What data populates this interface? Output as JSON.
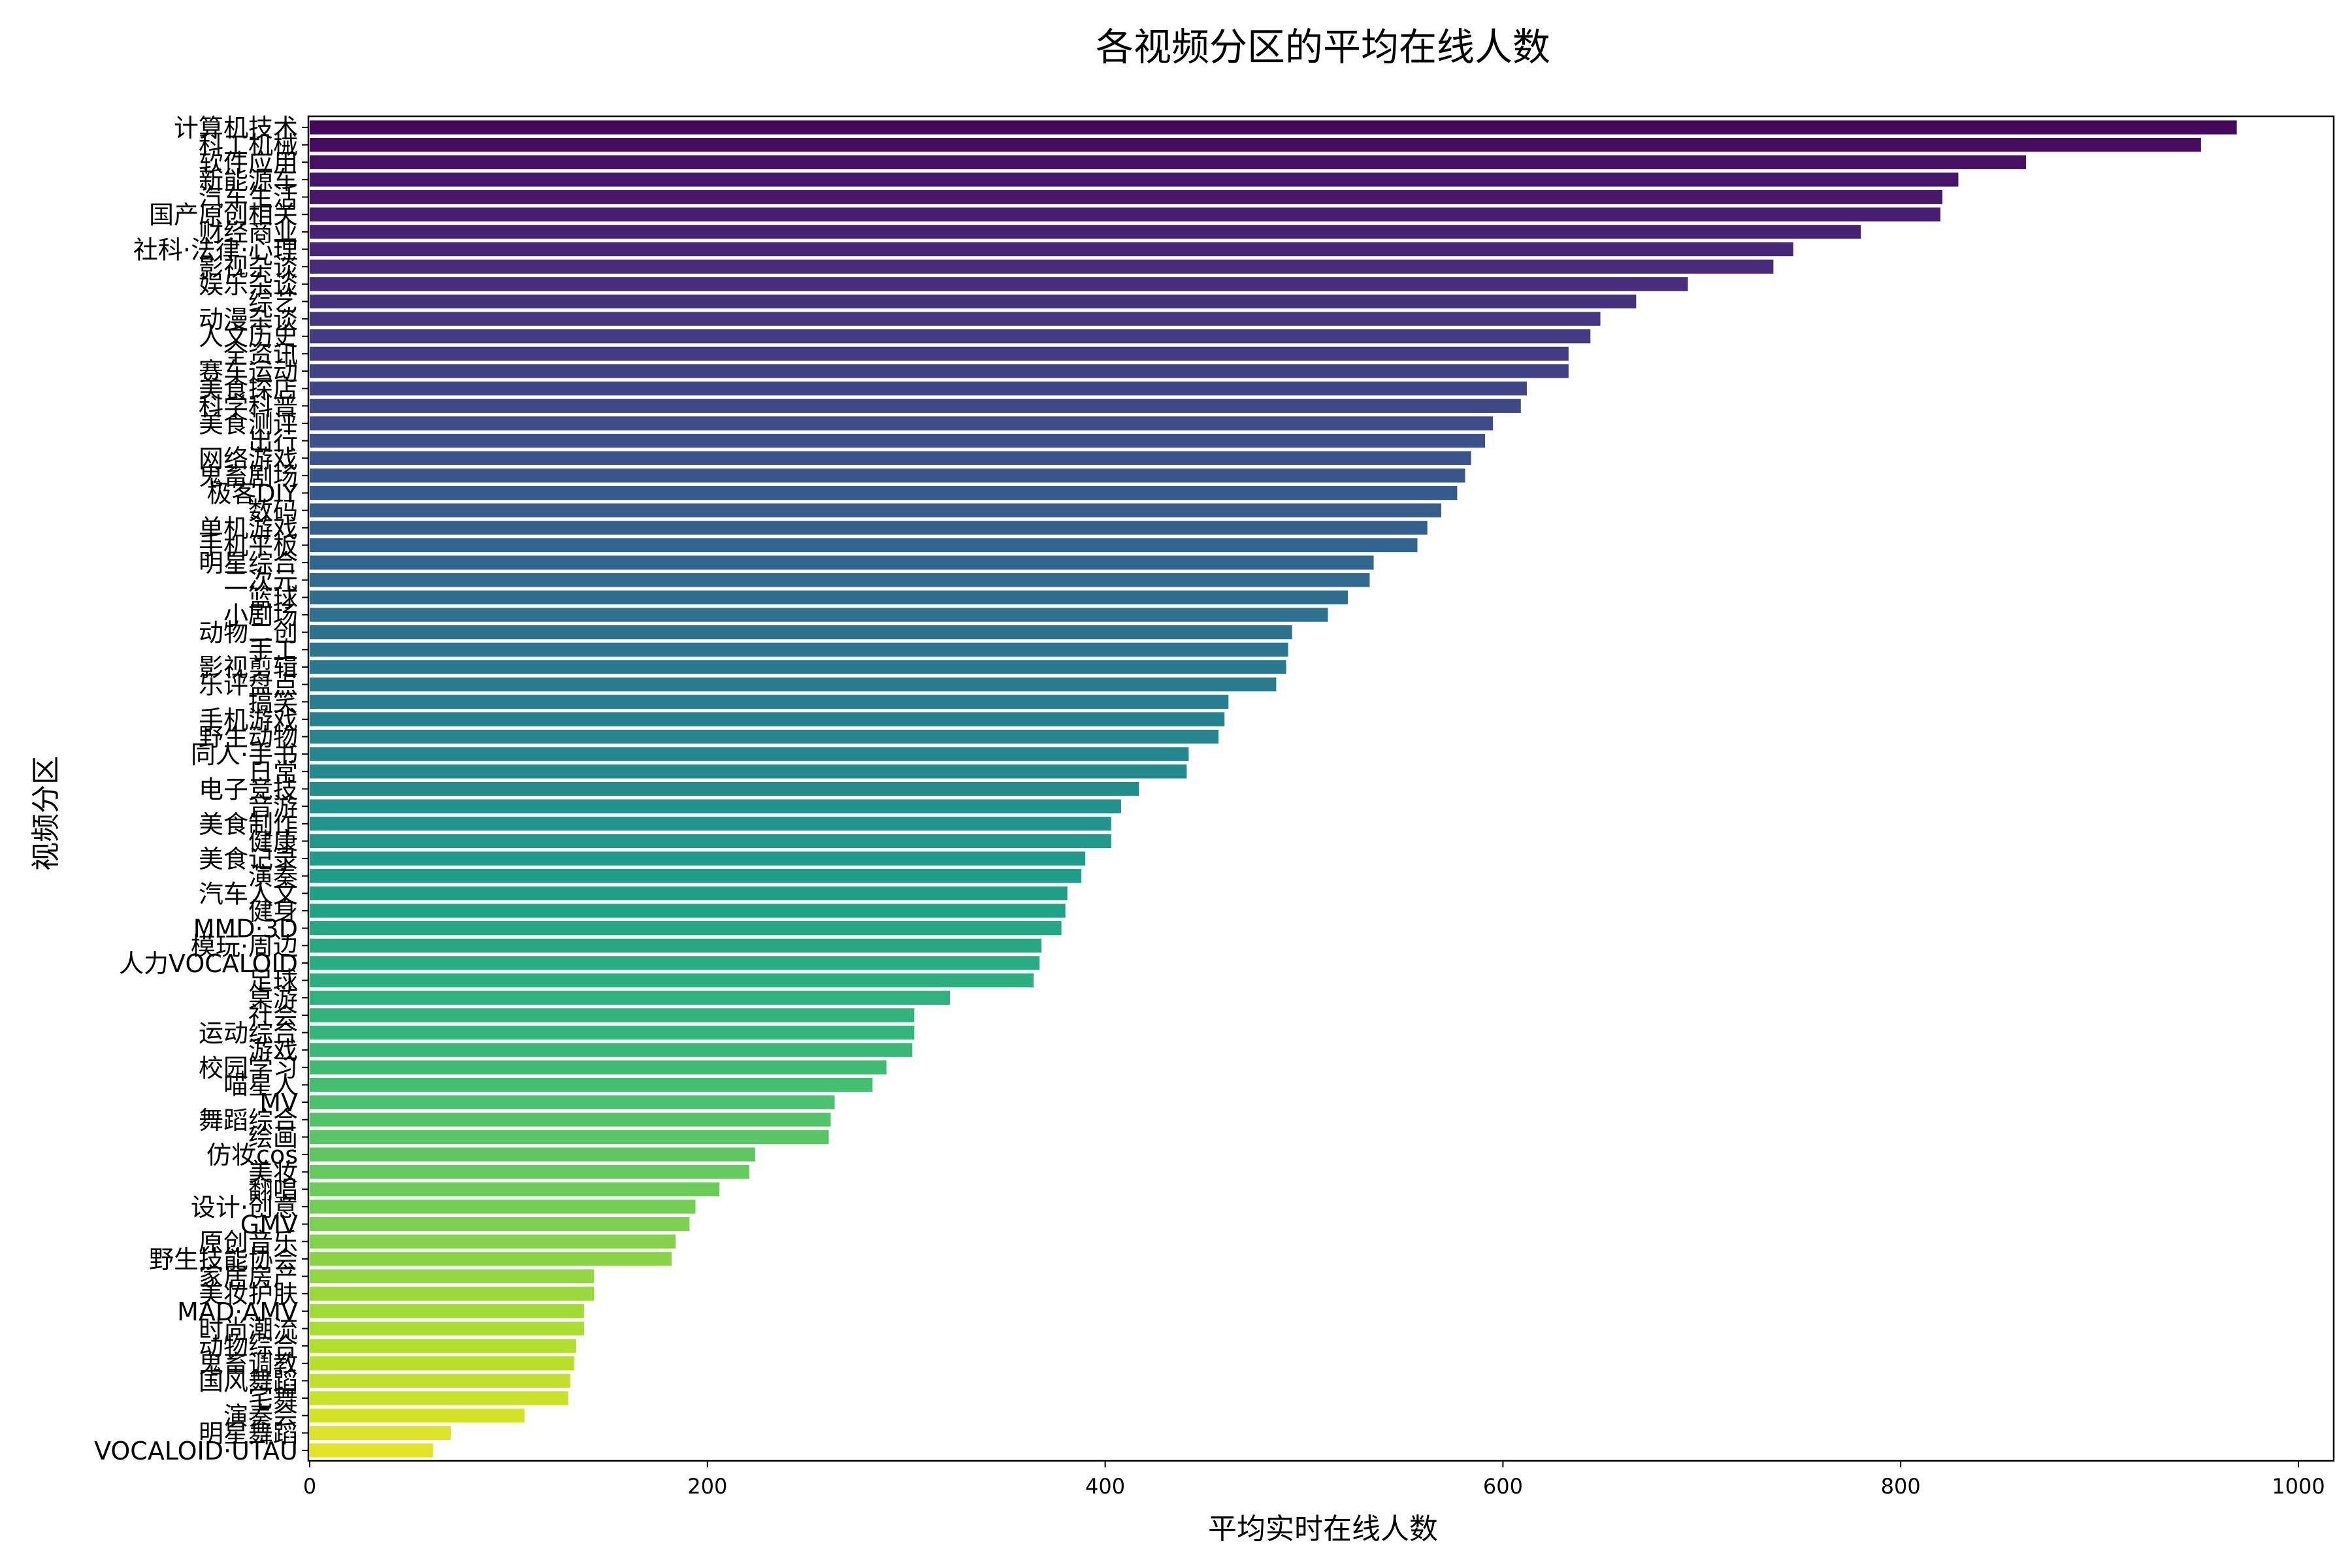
{
  "chart_data": {
    "type": "bar",
    "orientation": "horizontal",
    "title": "各视频分区的平均在线人数",
    "xlabel": "平均实时在线人数",
    "ylabel": "视频分区",
    "xlim": [
      0,
      1000
    ],
    "xticks": [
      0,
      200,
      400,
      600,
      800,
      1000
    ],
    "grid": false,
    "legend": "none",
    "colormap": "viridis",
    "categories": [
      "计算机技术",
      "科工机械",
      "软件应用",
      "新能源车",
      "汽车生活",
      "国产原创相关",
      "财经商业",
      "社科·法律·心理",
      "影视杂谈",
      "娱乐杂谈",
      "综艺",
      "动漫杂谈",
      "人文历史",
      "全资讯",
      "赛车运动",
      "美食探店",
      "科学科普",
      "美食测评",
      "出行",
      "网络游戏",
      "鬼畜剧场",
      "极客DIY",
      "数码",
      "单机游戏",
      "手机平板",
      "明星综合",
      "二次元",
      "篮球",
      "小剧场",
      "动物二创",
      "手工",
      "影视剪辑",
      "乐评盘点",
      "搞笑",
      "手机游戏",
      "野生动物",
      "同人·手书",
      "日常",
      "电子竞技",
      "音游",
      "美食制作",
      "健康",
      "美食记录",
      "演奏",
      "汽车人文",
      "健身",
      "MMD·3D",
      "模玩·周边",
      "人力VOCALOID",
      "足球",
      "桌游",
      "社会",
      "运动综合",
      "游戏",
      "校园学习",
      "喵星人",
      "MV",
      "舞蹈综合",
      "绘画",
      "仿妆cos",
      "美妆",
      "翻唱",
      "设计·创意",
      "GMV",
      "原创音乐",
      "野生技能协会",
      "家居房产",
      "美妆护肤",
      "MAD·AMV",
      "时尚潮流",
      "动物综合",
      "鬼畜调教",
      "国风舞蹈",
      "宅舞",
      "演奏会",
      "明星舞蹈",
      "VOCALOID·UTAU"
    ],
    "values": [
      969,
      951,
      863,
      829,
      821,
      820,
      780,
      746,
      736,
      693,
      667,
      649,
      644,
      633,
      633,
      612,
      609,
      595,
      591,
      584,
      581,
      577,
      569,
      562,
      557,
      535,
      533,
      522,
      512,
      494,
      492,
      491,
      486,
      462,
      460,
      457,
      442,
      441,
      417,
      408,
      403,
      403,
      390,
      388,
      381,
      380,
      378,
      368,
      367,
      364,
      322,
      304,
      304,
      303,
      290,
      283,
      264,
      262,
      261,
      224,
      221,
      206,
      194,
      191,
      184,
      182,
      143,
      143,
      138,
      138,
      134,
      133,
      131,
      130,
      108,
      71,
      62
    ],
    "axis_ticks_visible": [
      "计算机技术",
      "科工机械",
      "软件应用",
      "新能源车",
      "汽车生活",
      "国产原创相关",
      "财经商业",
      "社科·法律·心理",
      "影视杂谈",
      "娱乐杂谈",
      "综艺",
      "动漫杂谈",
      "人文历史",
      "全资讯",
      "赛车运动",
      "美食探店",
      "科学科普",
      "美食测评",
      "出行",
      "网络游戏",
      "鬼畜剧场",
      "极客DIY",
      "数码",
      "单机游戏",
      "手机平板",
      "明星综合",
      "二次元",
      "篮球",
      "小剧场",
      "动物二创",
      "手工",
      "影视剪辑",
      "乐评盘点",
      "搞笑",
      "手机游戏",
      "野生动物",
      "同人·手书",
      "日常",
      "电子竞技",
      "音游",
      "美食制作",
      "健康",
      "美食记录",
      "演奏",
      "汽车人文",
      "健身",
      "MMD·3D",
      "模玩·周边",
      "人力VOCALOID",
      "足球",
      "桌游",
      "社会",
      "运动综合",
      "游戏",
      "校园学习",
      "喵星人",
      "MV",
      "舞蹈综合",
      "绘画",
      "仿妆cos",
      "美妆",
      "翻唱",
      "设计·创意",
      "GMV",
      "原创音乐",
      "野生技能协会",
      "家居房产",
      "美妆护肤",
      "MAD·AMV",
      "时尚潮流",
      "动物综合",
      "鬼畜调教",
      "国风舞蹈",
      "宅舞",
      "演奏会",
      "明星舞蹈",
      "VOCALOID·UTAU"
    ]
  }
}
